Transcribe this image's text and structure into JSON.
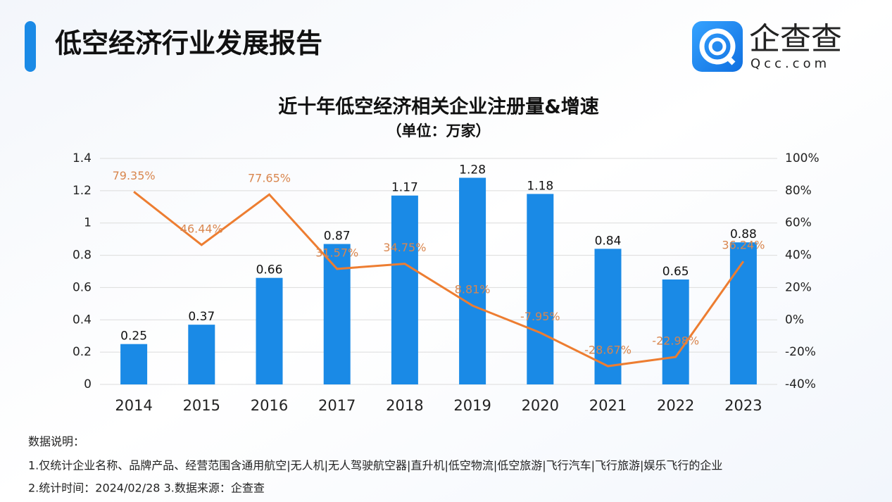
{
  "header": {
    "title": "低空经济行业发展报告",
    "logo_name": "企查查",
    "logo_url": "Qcc.com"
  },
  "chart_data": {
    "type": "bar",
    "title": "近十年低空经济相关企业注册量&增速",
    "subtitle": "（单位：万家）",
    "categories": [
      "2014",
      "2015",
      "2016",
      "2017",
      "2018",
      "2019",
      "2020",
      "2021",
      "2022",
      "2023"
    ],
    "series": [
      {
        "color": "#1a8ae6",
        "values": [
          0.25,
          0.37,
          0.66,
          0.87,
          1.17,
          1.28,
          1.18,
          0.84,
          0.65,
          0.88
        ]
      },
      {
        "type": "line",
        "axis": "y2",
        "color": "#ed7d31",
        "values": [
          79.35,
          46.44,
          77.65,
          31.57,
          34.75,
          8.81,
          -7.95,
          -28.67,
          -22.98,
          36.24
        ],
        "value_labels": [
          "79.35%",
          "46.44%",
          "77.65%",
          "31.57%",
          "34.75%",
          "8.81%",
          "-7.95%",
          "-28.67%",
          "-22.98%",
          "36.24%"
        ]
      }
    ],
    "ylim": [
      0,
      1.4
    ],
    "yticks": [
      0,
      0.2,
      0.4,
      0.6,
      0.8,
      1,
      1.2,
      1.4
    ],
    "y2lim": [
      -40,
      100
    ],
    "y2ticks": [
      {
        "value": -40,
        "label": "-40%"
      },
      {
        "value": -20,
        "label": "-20%"
      },
      {
        "value": 0,
        "label": "0%"
      },
      {
        "value": 20,
        "label": "20%"
      },
      {
        "value": 40,
        "label": "40%"
      },
      {
        "value": 60,
        "label": "60%"
      },
      {
        "value": 80,
        "label": "80%"
      },
      {
        "value": 100,
        "label": "100%"
      }
    ],
    "grid": true
  },
  "notes": {
    "heading": "数据说明：",
    "lines": [
      "1.仅统计企业名称、品牌产品、经营范围含通用航空|无人机|无人驾驶航空器|直升机|低空物流|低空旅游|飞行汽车|飞行旅游|娱乐飞行的企业",
      "2.统计时间：2024/02/28    3.数据来源：企查查"
    ]
  }
}
